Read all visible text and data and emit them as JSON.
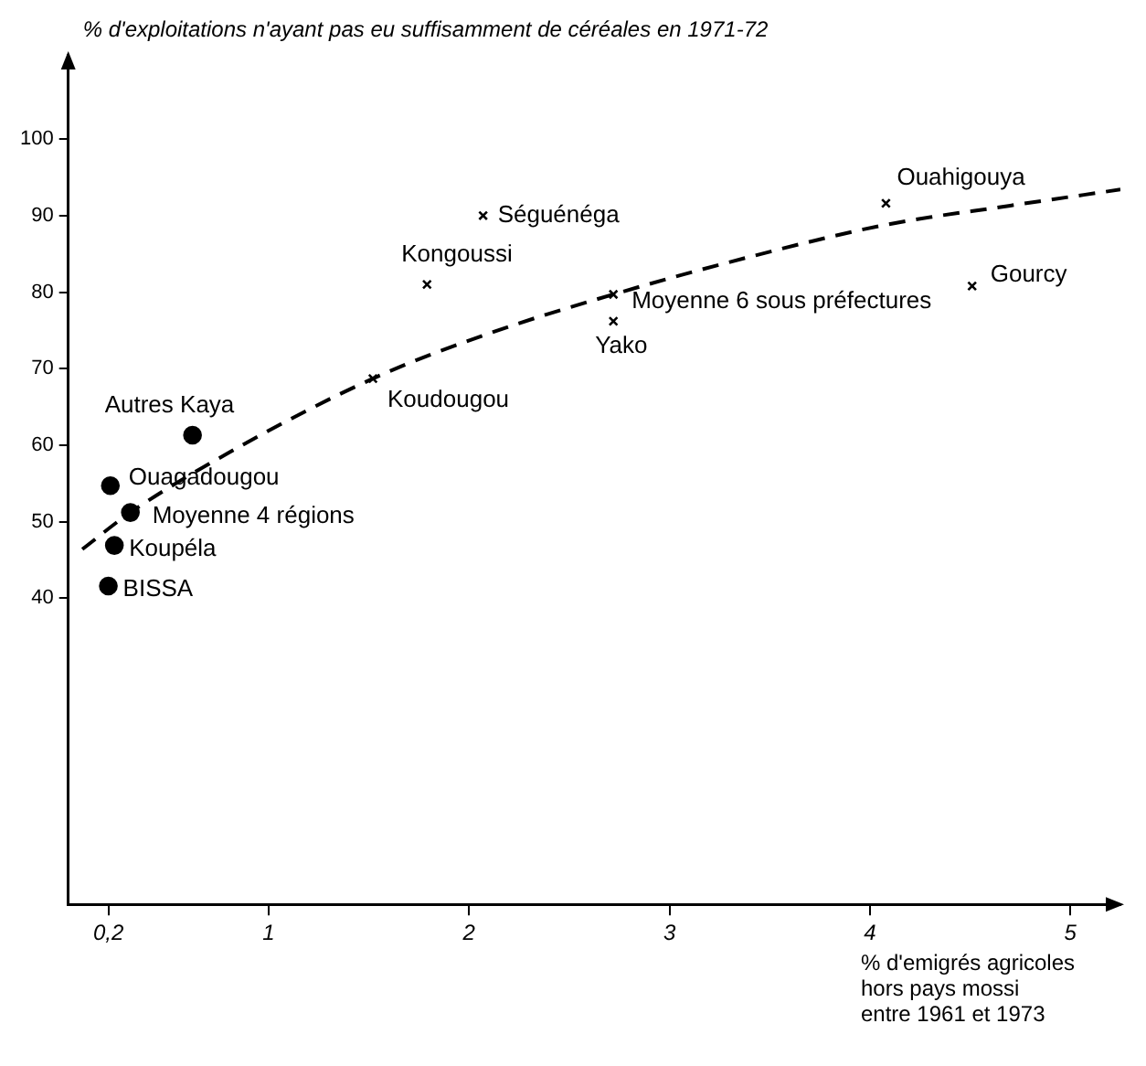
{
  "chart_data": {
    "type": "scatter",
    "xlabel": "% d'emigrés agricoles\nhors pays mossi\nentre 1961 et 1973",
    "ylabel": "% d'exploitations n'ayant pas eu suffisamment de céréales en 1971-72",
    "xlim": [
      0,
      5.25
    ],
    "xticks": [
      {
        "value": 0.2,
        "label": "0,2"
      },
      1,
      2,
      3,
      4,
      5
    ],
    "ylim": [
      0,
      111
    ],
    "yticks": [
      40,
      50,
      60,
      70,
      80,
      90,
      100
    ],
    "grid": false,
    "legend": false,
    "series": [
      {
        "name": "Séguénéga",
        "color": "#000000",
        "marker": "cross",
        "x": [
          2.07
        ],
        "values": [
          90
        ]
      },
      {
        "name": "Kongoussi",
        "color": "#000000",
        "marker": "cross",
        "x": [
          1.79
        ],
        "values": [
          81
        ]
      },
      {
        "name": "Koudougou",
        "color": "#000000",
        "marker": "cross",
        "x": [
          1.52
        ],
        "values": [
          68.7
        ]
      },
      {
        "name": "Moyenne 6 sous préfectures",
        "color": "#000000",
        "marker": "cross",
        "x": [
          2.72
        ],
        "values": [
          79.7
        ]
      },
      {
        "name": "Yako",
        "color": "#000000",
        "marker": "cross",
        "x": [
          2.72
        ],
        "values": [
          76.2
        ]
      },
      {
        "name": "Ouahigouya",
        "color": "#000000",
        "marker": "cross",
        "x": [
          4.08
        ],
        "values": [
          91.6
        ]
      },
      {
        "name": "Gourcy",
        "color": "#000000",
        "marker": "cross",
        "x": [
          4.51
        ],
        "values": [
          80.8
        ]
      },
      {
        "name": "Autres Kaya",
        "color": "#000000",
        "marker": "circle",
        "x": [
          0.62
        ],
        "values": [
          61.3
        ]
      },
      {
        "name": "Ouagadougou",
        "color": "#000000",
        "marker": "circle",
        "x": [
          0.21
        ],
        "values": [
          54.7
        ]
      },
      {
        "name": "Moyenne 4 régions",
        "color": "#000000",
        "marker": "circle",
        "x": [
          0.31
        ],
        "values": [
          51.2
        ]
      },
      {
        "name": "Koupéla",
        "color": "#000000",
        "marker": "circle",
        "x": [
          0.23
        ],
        "values": [
          46.9
        ]
      },
      {
        "name": "BISSA",
        "color": "#000000",
        "marker": "circle",
        "x": [
          0.2
        ],
        "values": [
          41.6
        ]
      },
      {
        "type": "line",
        "color": "#000000",
        "marker": "none",
        "line_style": "dashed",
        "x": [
          0.07,
          0.31,
          0.8,
          1.52,
          2.1,
          2.72,
          3.4,
          4.08,
          4.7,
          5.25
        ],
        "values": [
          46.4,
          51.2,
          59,
          68.7,
          74.6,
          79.7,
          84.6,
          88.8,
          91.3,
          93.4
        ]
      }
    ]
  }
}
